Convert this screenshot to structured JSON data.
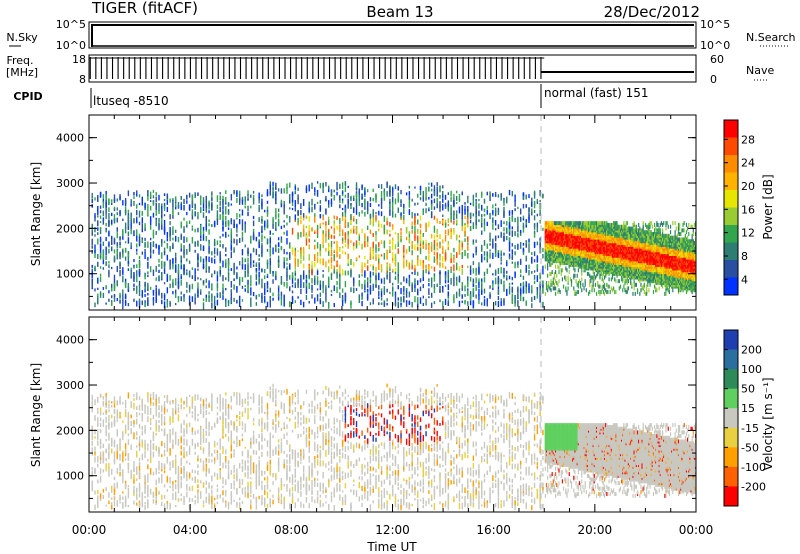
{
  "header": {
    "station": "TIGER (fitACF)",
    "beam": "Beam 13",
    "date": "28/Dec/2012"
  },
  "top_panels": {
    "nsky_label": "N.Sky",
    "nsky_ticks": [
      "10^5",
      "10^0"
    ],
    "nsearch_label": "N.Search",
    "nsearch_ticks": [
      "10^5",
      "10^0"
    ],
    "freq_label_line1": "Freq.",
    "freq_label_line2": "[MHz]",
    "freq_ticks": [
      "18",
      "8"
    ],
    "nave_label": "Nave",
    "nave_ticks": [
      "60",
      "0"
    ],
    "cpid_label": "CPID",
    "cpid_left": "ltuseq -8510",
    "cpid_right": "normal (fast) 151"
  },
  "x_axis": {
    "label": "Time UT",
    "ticks": [
      "00:00",
      "04:00",
      "08:00",
      "12:00",
      "16:00",
      "20:00",
      "00:00"
    ]
  },
  "power_panel": {
    "ylabel": "Slant Range [km]",
    "yticks": [
      "4000",
      "3000",
      "2000",
      "1000"
    ],
    "colorbar_label": "Power [dB]",
    "colorbar_ticks": [
      "28",
      "24",
      "20",
      "16",
      "12",
      "8",
      "4"
    ],
    "colors": [
      "#ff0000",
      "#ff4a00",
      "#ff8c00",
      "#ffb300",
      "#e6e600",
      "#99cc33",
      "#33a64d",
      "#2e7d73",
      "#2a4fa0",
      "#0033ff"
    ]
  },
  "velocity_panel": {
    "ylabel": "Slant Range [km]",
    "yticks": [
      "4000",
      "3000",
      "2000",
      "1000"
    ],
    "colorbar_label": "Velocity [m s⁻¹]",
    "colorbar_ticks": [
      "200",
      "100",
      "50",
      "15",
      "-15",
      "-50",
      "-100",
      "-200"
    ],
    "colors": [
      "#1f3fb0",
      "#2a6fa0",
      "#2f8a5a",
      "#5fd05f",
      "#c8c8c0",
      "#e8d040",
      "#ffa000",
      "#ff6000",
      "#ff0000"
    ]
  },
  "chart_data": [
    {
      "type": "heatmap",
      "title": "",
      "xlabel": "Time UT",
      "ylabel": "Slant Range [km]",
      "xlim": [
        "00:00",
        "00:00"
      ],
      "ylim": [
        200,
        4500
      ],
      "colorbar": {
        "label": "Power [dB]",
        "range": [
          0,
          32
        ]
      },
      "regions": [
        {
          "t_start": 0,
          "t_end": 18,
          "range_min": 300,
          "range_max": 3000,
          "power_db": 6
        },
        {
          "t_start": 8,
          "t_end": 14,
          "range_min": 1200,
          "range_max": 2200,
          "power_db": 14
        },
        {
          "t_start": 18,
          "t_end": 24,
          "range_min": 700,
          "range_max": 2100,
          "power_db": 26
        }
      ]
    },
    {
      "type": "heatmap",
      "title": "",
      "xlabel": "Time UT",
      "ylabel": "Slant Range [km]",
      "xlim": [
        "00:00",
        "00:00"
      ],
      "ylim": [
        200,
        4500
      ],
      "colorbar": {
        "label": "Velocity [m s⁻¹]",
        "range": [
          -250,
          250
        ]
      },
      "regions": [
        {
          "t_start": 0,
          "t_end": 18,
          "range_min": 300,
          "range_max": 2500,
          "velocity": 0
        },
        {
          "t_start": 10,
          "t_end": 14,
          "range_min": 1800,
          "range_max": 2600,
          "velocity": -150
        },
        {
          "t_start": 18,
          "t_end": 24,
          "range_min": 700,
          "range_max": 2100,
          "velocity": 0
        }
      ]
    }
  ]
}
